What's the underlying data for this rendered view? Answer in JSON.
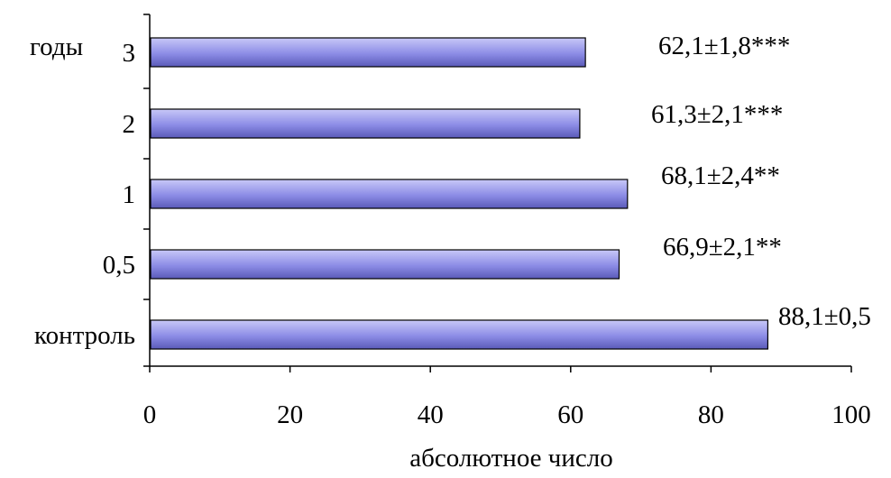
{
  "chart_data": {
    "type": "bar",
    "orientation": "horizontal",
    "categories": [
      "контроль",
      "0,5",
      "1",
      "2",
      "3"
    ],
    "values": [
      88.1,
      66.9,
      68.1,
      61.3,
      62.1
    ],
    "data_labels": [
      "88,1±0,5",
      "66,9±2,1**",
      "68,1±2,4**",
      "61,3±2,1***",
      "62,1±1,8***"
    ],
    "y_axis_extra_label": "годы",
    "xlabel": "абсолютное число",
    "ylabel": "",
    "title": "",
    "xlim": [
      0,
      100
    ],
    "xticks": [
      0,
      20,
      40,
      60,
      80,
      100
    ],
    "xtick_labels": [
      "0",
      "20",
      "40",
      "60",
      "80",
      "100"
    ],
    "grid": false,
    "legend": "none",
    "colors": {
      "bar_light": "#c8c8f8",
      "bar_mid": "#8c8ce6",
      "bar_dark": "#5a5ab8",
      "bar_stroke": "#000000",
      "axis": "#000000"
    }
  }
}
